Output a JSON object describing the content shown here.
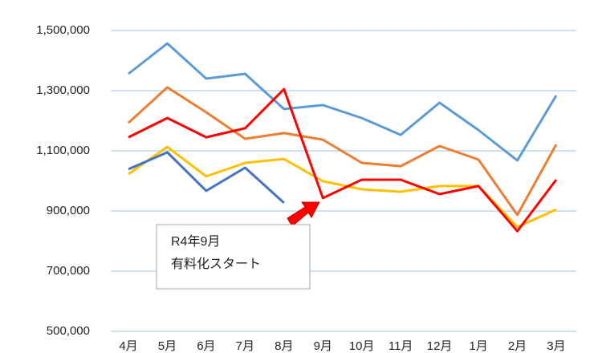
{
  "chart_data": {
    "type": "line",
    "categories": [
      "4月",
      "5月",
      "6月",
      "7月",
      "8月",
      "9月",
      "10月",
      "11月",
      "12月",
      "1月",
      "2月",
      "3月"
    ],
    "series": [
      {
        "color": "#5b9bd5",
        "values": [
          1356000,
          1457000,
          1340000,
          1356000,
          1239000,
          1252000,
          1209000,
          1153000,
          1260000,
          1169000,
          1068000,
          1284000
        ]
      },
      {
        "color": "#ed7d31",
        "values": [
          1193000,
          1311000,
          1228000,
          1140000,
          1159000,
          1137000,
          1060000,
          1049000,
          1116000,
          1071000,
          887000,
          1121000
        ]
      },
      {
        "color": "#ffc000",
        "values": [
          1023000,
          1113000,
          1015000,
          1060000,
          1073000,
          999000,
          972000,
          964000,
          983000,
          983000,
          847000,
          905000
        ]
      },
      {
        "color": "#4472c4",
        "values": [
          1039000,
          1095000,
          967000,
          1044000,
          927000,
          null,
          null,
          null,
          null,
          null,
          null,
          null
        ]
      },
      {
        "color": "#ff0000",
        "values": [
          1145000,
          1209000,
          1145000,
          1175000,
          1305000,
          943000,
          1004000,
          1004000,
          956000,
          983000,
          833000,
          1004000
        ]
      }
    ],
    "ylim": [
      500000,
      1600000
    ],
    "yticks": [
      {
        "value": 500000,
        "label": "500,000"
      },
      {
        "value": 700000,
        "label": "700,000"
      },
      {
        "value": 900000,
        "label": "900,000"
      },
      {
        "value": 1100000,
        "label": "1,100,000"
      },
      {
        "value": 1300000,
        "label": "1,300,000"
      },
      {
        "value": 1500000,
        "label": "1,500,000"
      }
    ],
    "grid": true,
    "annotation": [
      "R4年9月",
      "有料化スタート"
    ]
  }
}
